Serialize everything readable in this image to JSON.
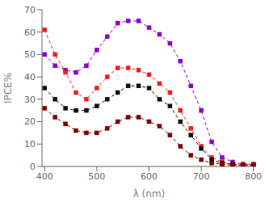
{
  "chart_data": {
    "type": "line",
    "xlabel": "λ (nm)",
    "ylabel": "IPCE%",
    "x": [
      400,
      420,
      440,
      460,
      480,
      500,
      520,
      540,
      560,
      580,
      600,
      620,
      640,
      660,
      680,
      700,
      720,
      740,
      760,
      780,
      800
    ],
    "series": [
      {
        "color": "#8B00CC",
        "marker": "square",
        "line_style": "dashed",
        "values": [
          50,
          45,
          43,
          42,
          45,
          52,
          58,
          64,
          65,
          65,
          62,
          59,
          55,
          47,
          36,
          25,
          11,
          4,
          2,
          1,
          1
        ]
      },
      {
        "color": "#EE2020",
        "marker": "square",
        "line_style": "dashed",
        "values": [
          61,
          50,
          42,
          33,
          30,
          35,
          40,
          44,
          44,
          43,
          41,
          37,
          33,
          25,
          17,
          9,
          4,
          2,
          1,
          1,
          1
        ]
      },
      {
        "color": "#111111",
        "marker": "square",
        "line_style": "dashed",
        "values": [
          35,
          30,
          26,
          25,
          25,
          27,
          30,
          33,
          36,
          36,
          35,
          30,
          27,
          20,
          14,
          8,
          3,
          1.5,
          1,
          0.5,
          0.5
        ]
      },
      {
        "color": "#800000",
        "marker": "square",
        "line_style": "dashed",
        "values": [
          26,
          22,
          19,
          16,
          15,
          15,
          17,
          20,
          22,
          22,
          20,
          18,
          14,
          9,
          5,
          3,
          1.5,
          1,
          0.5,
          0.5,
          0.5
        ]
      }
    ],
    "xlim": [
      395,
      805
    ],
    "ylim": [
      0,
      70
    ],
    "xticks": [
      400,
      500,
      600,
      700,
      800
    ],
    "yticks": [
      0,
      10,
      20,
      30,
      40,
      50,
      60,
      70
    ],
    "grid": false
  }
}
